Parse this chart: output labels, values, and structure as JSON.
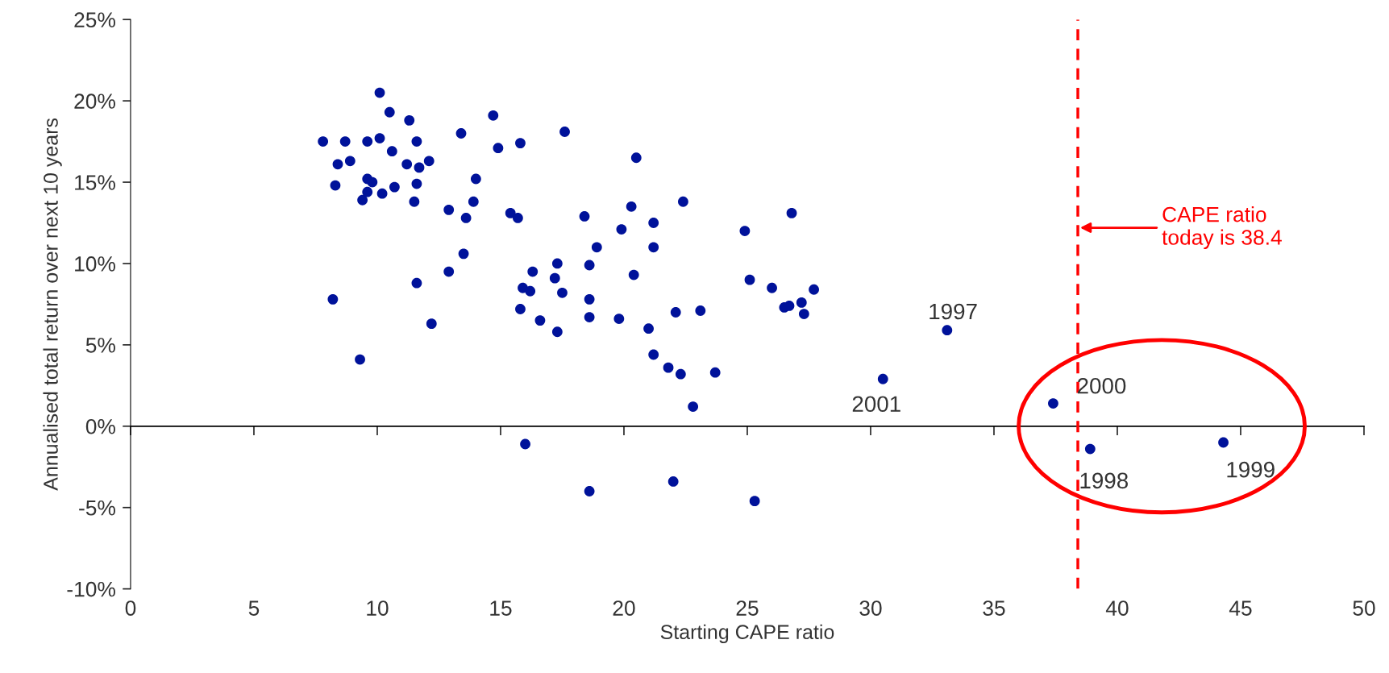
{
  "chart_data": {
    "type": "scatter",
    "xlabel": "Starting CAPE ratio",
    "ylabel": "Annualised total return over next 10 years",
    "x": [
      7.8,
      8.4,
      8.3,
      8.2,
      8.7,
      8.9,
      9.3,
      9.4,
      9.6,
      9.6,
      9.8,
      9.6,
      10.1,
      10.1,
      10.2,
      10.5,
      10.6,
      10.7,
      11.2,
      11.3,
      11.6,
      11.5,
      11.6,
      11.7,
      11.6,
      12.1,
      12.2,
      12.9,
      12.9,
      13.4,
      13.5,
      13.6,
      13.9,
      14.0,
      14.7,
      14.9,
      15.4,
      15.7,
      15.8,
      15.8,
      15.9,
      16.2,
      16.0,
      16.3,
      16.6,
      17.2,
      17.3,
      17.3,
      17.5,
      17.6,
      18.4,
      18.6,
      18.6,
      18.6,
      18.6,
      18.9,
      19.8,
      19.9,
      20.3,
      20.4,
      20.5,
      21.0,
      21.2,
      21.2,
      21.2,
      21.8,
      22.1,
      22.0,
      22.3,
      22.4,
      22.8,
      23.1,
      23.7,
      24.9,
      25.1,
      25.3,
      26.0,
      26.5,
      26.7,
      26.8,
      27.2,
      27.3,
      27.7,
      30.5,
      33.1,
      37.4,
      38.9,
      44.3
    ],
    "series": [
      {
        "color": "#00129a",
        "values": [
          17.5,
          16.1,
          14.8,
          7.8,
          17.5,
          16.3,
          4.1,
          13.9,
          17.5,
          15.2,
          15.0,
          14.4,
          17.7,
          20.5,
          14.3,
          19.3,
          16.9,
          14.7,
          16.1,
          18.8,
          17.5,
          13.8,
          14.9,
          15.9,
          8.8,
          16.3,
          6.3,
          13.3,
          9.5,
          18.0,
          10.6,
          12.8,
          13.8,
          15.2,
          19.1,
          17.1,
          13.1,
          12.8,
          17.4,
          7.2,
          8.5,
          8.3,
          -1.1,
          9.5,
          6.5,
          9.1,
          10.0,
          5.8,
          8.2,
          18.1,
          12.9,
          9.9,
          7.8,
          6.7,
          -4.0,
          11.0,
          6.6,
          12.1,
          13.5,
          9.3,
          16.5,
          6.0,
          11.0,
          12.5,
          4.4,
          3.6,
          7.0,
          -3.4,
          3.2,
          13.8,
          1.2,
          7.1,
          3.3,
          12.0,
          9.0,
          -4.6,
          8.5,
          7.3,
          7.4,
          13.1,
          7.6,
          6.9,
          8.4,
          2.9,
          5.9,
          1.4,
          -1.4,
          -1.0
        ]
      }
    ],
    "marker": "circle",
    "xlim": [
      0,
      50
    ],
    "xticks": [
      0,
      5,
      10,
      15,
      20,
      25,
      30,
      35,
      40,
      45,
      50
    ],
    "ylim": [
      -10,
      25
    ],
    "yticks": [
      {
        "value": -10,
        "label": "-10%"
      },
      {
        "value": -5,
        "label": "-5%"
      },
      {
        "value": 0,
        "label": "0%"
      },
      {
        "value": 5,
        "label": "5%"
      },
      {
        "value": 10,
        "label": "10%"
      },
      {
        "value": 15,
        "label": "15%"
      },
      {
        "value": 20,
        "label": "20%"
      },
      {
        "value": 25,
        "label": "25%"
      }
    ],
    "ref_lines": [
      {
        "axis": "x",
        "value": 38.4,
        "label": "CAPE ratio\ntoday is 38.4",
        "color": "#ff0000",
        "line_style": "dashed"
      }
    ],
    "annotations": [
      {
        "text": "1997",
        "x": 33.1,
        "y": 5.9
      },
      {
        "text": "2001",
        "x": 30.5,
        "y": 2.9
      },
      {
        "text": "2000",
        "x": 37.4,
        "y": 1.4
      },
      {
        "text": "1998",
        "x": 38.9,
        "y": -1.4
      },
      {
        "text": "1999",
        "x": 44.3,
        "y": -1.0
      }
    ],
    "legend": false
  }
}
